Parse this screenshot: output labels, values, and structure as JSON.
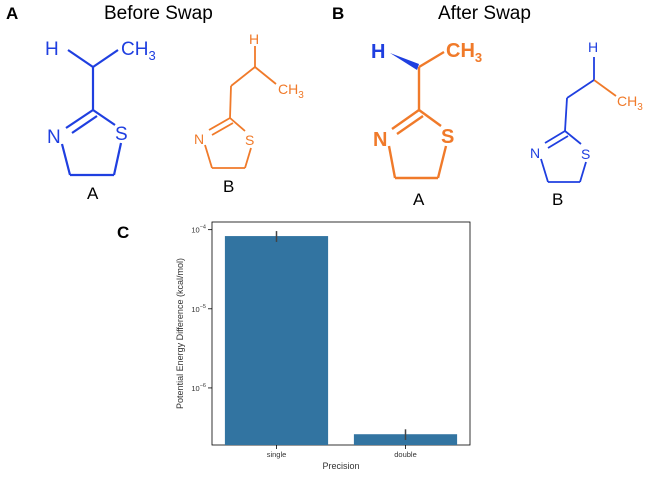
{
  "panels": {
    "a": {
      "letter": "A",
      "title": "Before Swap",
      "mol1_label": "A",
      "mol2_label": "B"
    },
    "b": {
      "letter": "B",
      "title": "After Swap",
      "mol1_label": "A",
      "mol2_label": "B"
    },
    "c": {
      "letter": "C"
    }
  },
  "atoms": {
    "h": "H",
    "n": "N",
    "s": "S",
    "ch": "CH",
    "sub3": "3"
  },
  "colors": {
    "blue": "#1f3fe0",
    "orange": "#f07a2a",
    "bar": "#3274a1",
    "errbar": "#444444"
  },
  "chart_data": {
    "type": "bar",
    "categories": [
      "single",
      "double"
    ],
    "values": [
      8.3e-05,
      2.6e-07
    ],
    "error_low": [
      7e-05,
      2.2e-07
    ],
    "error_high": [
      9.6e-05,
      3e-07
    ],
    "yscale": "log",
    "ylim": [
      1.9e-07,
      0.000125
    ],
    "yticks": [
      1e-06,
      1e-05,
      0.0001
    ],
    "ytick_labels": [
      {
        "base": "10",
        "exp": "−6"
      },
      {
        "base": "10",
        "exp": "−5"
      },
      {
        "base": "10",
        "exp": "−4"
      }
    ],
    "xlabel": "Precision",
    "ylabel": "Potential Energy Difference (kcal/mol)",
    "grid": false,
    "legend": "none"
  }
}
